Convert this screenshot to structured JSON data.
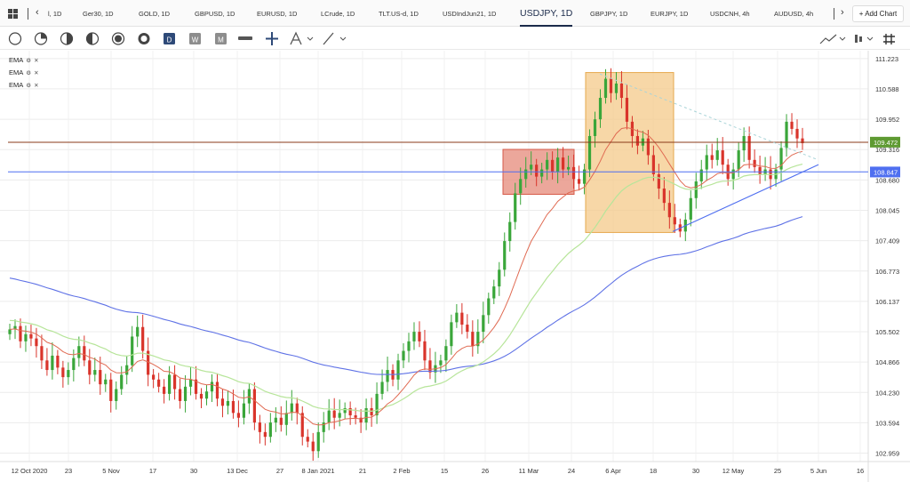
{
  "tabs": [
    {
      "label": "l, 1D",
      "active": false
    },
    {
      "label": "Ger30, 1D",
      "active": false
    },
    {
      "label": "GOLD, 1D",
      "active": false
    },
    {
      "label": "GBPUSD, 1D",
      "active": false
    },
    {
      "label": "EURUSD, 1D",
      "active": false
    },
    {
      "label": "LCrude, 1D",
      "active": false
    },
    {
      "label": "TLT.US-d, 1D",
      "active": false
    },
    {
      "label": "USDIndJun21, 1D",
      "active": false
    },
    {
      "label": "USDJPY, 1D",
      "active": true
    },
    {
      "label": "GBPJPY, 1D",
      "active": false
    },
    {
      "label": "EURJPY, 1D",
      "active": false
    },
    {
      "label": "USDCNH, 4h",
      "active": false
    },
    {
      "label": "AUDUSD, 4h",
      "active": false
    }
  ],
  "add_chart_label": "+ Add Chart",
  "toolbar_icons": [
    "circle-outline-icon",
    "circle-quarter-icon",
    "circle-half-diag-icon",
    "circle-half-icon",
    "circle-ring-icon",
    "circle-thick-ring-icon",
    "calendar-d-icon",
    "calendar-w-icon",
    "calendar-m-icon",
    "minus-line-icon",
    "crosshair-icon",
    "text-tool-icon",
    "line-tool-icon",
    "chart-type-icon",
    "bar-style-icon",
    "grid-icon"
  ],
  "legend": [
    {
      "label": "EMA",
      "gear": "⚙",
      "close": "✕"
    },
    {
      "label": "EMA",
      "gear": "⚙",
      "close": "✕"
    },
    {
      "label": "EMA",
      "gear": "⚙",
      "close": "✕"
    }
  ],
  "colors": {
    "up": "#3aa63a",
    "down": "#d9342b",
    "ema_fast": "#e06a52",
    "ema_mid": "#b7e59a",
    "ema_slow": "#5f72e6",
    "hline_brown": "#8a3a1a",
    "hline_blue": "#4f6ff0"
  },
  "chart_data": {
    "type": "candlestick",
    "symbol": "USDJPY",
    "timeframe": "1D",
    "ylim": [
      102.95,
      111.22
    ],
    "y_ticks": [
      "111.223",
      "110.588",
      "109.952",
      "109.316",
      "108.680",
      "108.045",
      "107.409",
      "106.773",
      "106.137",
      "105.502",
      "104.866",
      "104.230",
      "103.594",
      "102.959"
    ],
    "x_ticks": [
      "12 Oct 2020",
      "23",
      "5 Nov",
      "17",
      "30",
      "13 Dec",
      "27",
      "8 Jan 2021",
      "21",
      "2 Feb",
      "15",
      "26",
      "11 Mar",
      "24",
      "6 Apr",
      "18",
      "30",
      "12 May",
      "25",
      "5 Jun",
      "16"
    ],
    "price_labels": [
      {
        "value": "109.472",
        "color": "#5e9a32"
      },
      {
        "value": "108.847",
        "color": "#4f6ff0"
      }
    ],
    "horizontal_lines": [
      {
        "value": 109.47,
        "color": "#8a3a1a"
      },
      {
        "value": 108.85,
        "color": "#4f6ff0"
      }
    ],
    "candle_closes": [
      105.55,
      105.62,
      105.3,
      105.45,
      105.36,
      105.2,
      104.9,
      104.7,
      105.0,
      104.75,
      104.55,
      104.7,
      104.95,
      105.2,
      104.9,
      104.6,
      104.7,
      104.4,
      104.5,
      104.05,
      104.3,
      104.6,
      104.8,
      105.4,
      105.6,
      105.1,
      104.6,
      104.5,
      104.35,
      104.2,
      104.6,
      104.3,
      104.05,
      104.35,
      104.5,
      104.2,
      104.1,
      104.25,
      104.45,
      104.1,
      103.95,
      104.05,
      103.8,
      103.7,
      104.0,
      104.3,
      103.6,
      103.4,
      103.3,
      103.6,
      103.7,
      103.55,
      103.8,
      104.0,
      103.8,
      103.3,
      103.2,
      103.0,
      103.4,
      103.6,
      103.85,
      103.7,
      103.8,
      103.9,
      103.75,
      103.7,
      103.6,
      103.9,
      103.75,
      104.2,
      104.45,
      104.7,
      104.5,
      104.9,
      105.1,
      105.3,
      105.5,
      105.3,
      104.9,
      104.65,
      104.8,
      104.9,
      105.2,
      105.7,
      105.9,
      105.65,
      105.5,
      105.2,
      105.5,
      105.85,
      106.2,
      106.45,
      106.8,
      107.4,
      107.8,
      108.4,
      108.7,
      108.9,
      109.0,
      108.75,
      108.9,
      109.1,
      108.85,
      109.15,
      108.9,
      108.95,
      108.7,
      108.6,
      108.9,
      109.6,
      109.95,
      110.4,
      110.8,
      110.5,
      110.7,
      110.4,
      109.9,
      109.6,
      109.4,
      109.55,
      109.2,
      108.8,
      108.5,
      108.2,
      107.9,
      107.75,
      107.6,
      107.85,
      108.3,
      108.65,
      108.9,
      109.2,
      109.1,
      109.3,
      109.0,
      108.7,
      108.9,
      109.3,
      109.6,
      109.1,
      108.95,
      108.8,
      108.9,
      108.7,
      108.9,
      109.35,
      109.9,
      109.75,
      109.55,
      109.45
    ],
    "ema_fast_label": "EMA",
    "ema_mid_label": "EMA",
    "ema_slow_label": "EMA"
  }
}
